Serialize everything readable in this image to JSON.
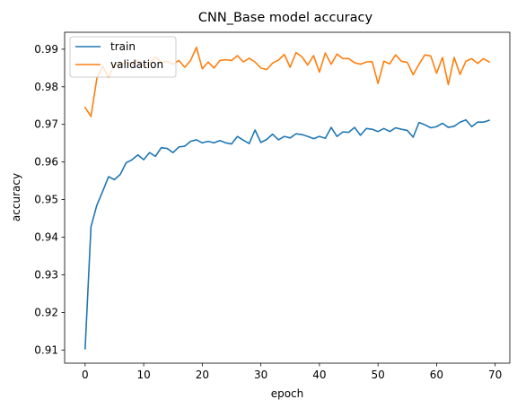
{
  "chart_data": {
    "type": "line",
    "title": "CNN_Base model accuracy",
    "xlabel": "epoch",
    "ylabel": "accuracy",
    "xlim": [
      -3.5,
      72.5
    ],
    "ylim": [
      0.9065,
      0.9945
    ],
    "xticks": [
      0,
      10,
      20,
      30,
      40,
      50,
      60,
      70
    ],
    "yticks": [
      0.91,
      0.92,
      0.93,
      0.94,
      0.95,
      0.96,
      0.97,
      0.98,
      0.99
    ],
    "grid": false,
    "legend": "upper left",
    "x": [
      0,
      1,
      2,
      3,
      4,
      5,
      6,
      7,
      8,
      9,
      10,
      11,
      12,
      13,
      14,
      15,
      16,
      17,
      18,
      19,
      20,
      21,
      22,
      23,
      24,
      25,
      26,
      27,
      28,
      29,
      30,
      31,
      32,
      33,
      34,
      35,
      36,
      37,
      38,
      39,
      40,
      41,
      42,
      43,
      44,
      45,
      46,
      47,
      48,
      49,
      50,
      51,
      52,
      53,
      54,
      55,
      56,
      57,
      58,
      59,
      60,
      61,
      62,
      63,
      64,
      65,
      66,
      67,
      68,
      69
    ],
    "series": [
      {
        "name": "train",
        "color": "#1f77b4",
        "values": [
          0.9103,
          0.9428,
          0.9485,
          0.9522,
          0.9561,
          0.9553,
          0.9567,
          0.9598,
          0.9606,
          0.9619,
          0.9606,
          0.9625,
          0.9615,
          0.9638,
          0.9636,
          0.9625,
          0.964,
          0.9642,
          0.9655,
          0.9659,
          0.9651,
          0.9655,
          0.9651,
          0.9657,
          0.9651,
          0.9648,
          0.9668,
          0.9658,
          0.9649,
          0.9685,
          0.9652,
          0.966,
          0.9674,
          0.9659,
          0.9668,
          0.9664,
          0.9675,
          0.9673,
          0.9668,
          0.9662,
          0.9668,
          0.9663,
          0.9692,
          0.9668,
          0.968,
          0.9679,
          0.9692,
          0.9671,
          0.9689,
          0.9687,
          0.9681,
          0.9689,
          0.9681,
          0.9691,
          0.9687,
          0.9684,
          0.9666,
          0.9705,
          0.9699,
          0.9691,
          0.9694,
          0.9703,
          0.9692,
          0.9695,
          0.9706,
          0.9712,
          0.9694,
          0.9706,
          0.9706,
          0.9711
        ]
      },
      {
        "name": "validation",
        "color": "#ff7f0e",
        "values": [
          0.9745,
          0.9721,
          0.9822,
          0.9855,
          0.9825,
          0.986,
          0.986,
          0.9865,
          0.986,
          0.987,
          0.9855,
          0.9862,
          0.988,
          0.9865,
          0.9868,
          0.986,
          0.987,
          0.9852,
          0.987,
          0.9905,
          0.9848,
          0.9866,
          0.985,
          0.987,
          0.9872,
          0.987,
          0.9883,
          0.9866,
          0.9876,
          0.9866,
          0.985,
          0.9846,
          0.9863,
          0.9871,
          0.9886,
          0.9852,
          0.9891,
          0.988,
          0.9858,
          0.9883,
          0.9839,
          0.989,
          0.986,
          0.9887,
          0.9875,
          0.9875,
          0.9864,
          0.986,
          0.9866,
          0.9867,
          0.9809,
          0.9868,
          0.9861,
          0.9885,
          0.9868,
          0.9865,
          0.9832,
          0.986,
          0.9885,
          0.9882,
          0.9836,
          0.9878,
          0.9806,
          0.9878,
          0.9833,
          0.9868,
          0.9875,
          0.9862,
          0.9875,
          0.9866
        ]
      }
    ]
  }
}
